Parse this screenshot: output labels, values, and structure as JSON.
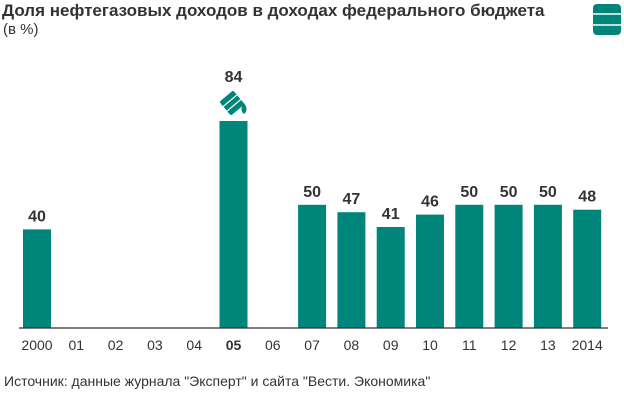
{
  "chart_data": {
    "type": "bar",
    "title": "Доля нефтегазовых доходов в доходах федерального бюджета",
    "subtitle": "(в %)",
    "categories": [
      "2000",
      "01",
      "02",
      "03",
      "04",
      "05",
      "06",
      "07",
      "08",
      "09",
      "10",
      "11",
      "12",
      "13",
      "2014"
    ],
    "values": [
      40,
      null,
      null,
      null,
      null,
      84,
      null,
      50,
      47,
      41,
      46,
      50,
      50,
      50,
      48
    ],
    "data_labels": [
      "40",
      "",
      "",
      "",
      "",
      "84",
      "",
      "50",
      "47",
      "41",
      "46",
      "50",
      "50",
      "50",
      "48"
    ],
    "highlight_category": "05",
    "ylim": [
      0,
      84
    ],
    "bar_color": "#00857a",
    "axis_color": "#333333",
    "grid": false,
    "legend": false,
    "icons": [
      "oil-barrel-icon",
      "spilled-barrel-icon"
    ]
  },
  "source": "Источник: данные журнала \"Эксперт\" и сайта \"Вести. Экономика\""
}
